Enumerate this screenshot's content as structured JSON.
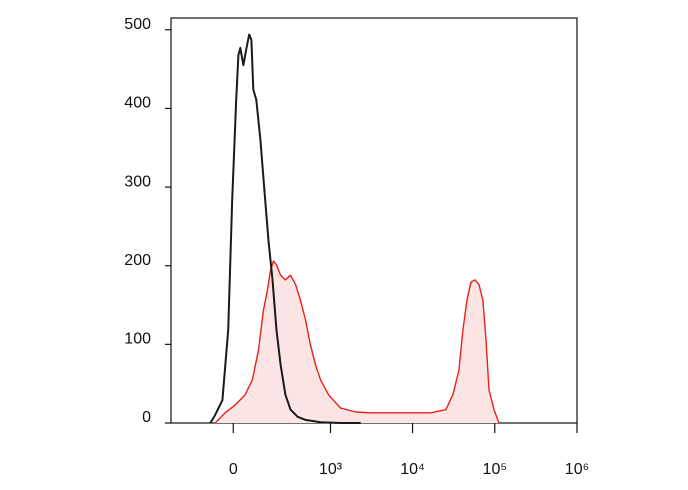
{
  "chart_data": {
    "type": "line",
    "xscale": "biexponential",
    "xlim": [
      -366,
      1000000
    ],
    "xticks": [
      0,
      {
        "value": 1000,
        "label": "10³"
      },
      {
        "value": 10000,
        "label": "10⁴"
      },
      {
        "value": 100000,
        "label": "10⁵"
      },
      {
        "value": 1000000,
        "label": "10⁶"
      }
    ],
    "ylim": [
      0,
      515
    ],
    "yticks": [
      0,
      100,
      200,
      300,
      400,
      500
    ],
    "series": [
      {
        "color": "#e8221a",
        "fill": "#fde4e4",
        "x": [
          -70,
          -30,
          7,
          45,
          74,
          101,
          125,
          146,
          164,
          182,
          202,
          231,
          269,
          314,
          366,
          423,
          490,
          566,
          653,
          754,
          946,
          1330,
          2030,
          3090,
          4710,
          7190,
          10960,
          16690,
          25420,
          30950,
          36630,
          40990,
          45800,
          51200,
          57400,
          64300,
          71800,
          78300,
          85100,
          97900,
          112700
        ],
        "values": [
          0,
          13,
          23,
          36,
          55,
          93,
          143,
          169,
          194,
          206,
          201,
          188,
          182,
          188,
          176,
          156,
          131,
          99,
          74,
          55,
          36,
          19,
          14,
          13,
          13,
          13,
          13,
          13,
          17,
          36,
          67,
          118,
          156,
          179,
          182,
          176,
          156,
          106,
          42,
          17,
          0
        ]
      },
      {
        "color": "#1a1a1a",
        "x": [
          -91,
          -70,
          -41,
          -19,
          -4,
          11,
          19,
          26,
          38,
          49,
          61,
          70,
          78,
          91,
          110,
          130,
          152,
          176,
          202,
          231,
          269,
          314,
          388,
          490,
          754,
          1330,
          2340
        ],
        "values": [
          0,
          10,
          29,
          118,
          284,
          411,
          468,
          477,
          455,
          475,
          494,
          487,
          424,
          411,
          360,
          296,
          233,
          182,
          118,
          74,
          36,
          17,
          8,
          4,
          1,
          0,
          0
        ]
      }
    ]
  }
}
